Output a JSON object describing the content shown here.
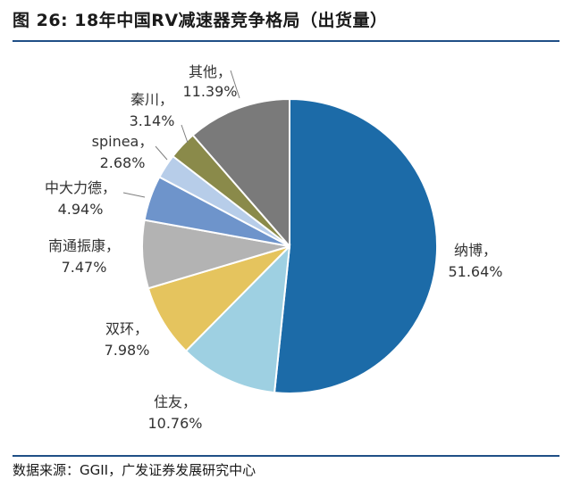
{
  "header": {
    "title": "图 26: 18年中国RV减速器竞争格局（出货量）"
  },
  "footer": {
    "source": "数据来源：GGII，广发证券发展研究中心"
  },
  "chart_data": {
    "type": "pie",
    "title": "图 26: 18年中国RV减速器竞争格局（出货量）",
    "unit": "%",
    "slices": [
      {
        "name": "纳博",
        "value": 51.64,
        "label": "51.64%",
        "color": "#1c6ba8"
      },
      {
        "name": "住友",
        "value": 10.76,
        "label": "10.76%",
        "color": "#9ed0e2"
      },
      {
        "name": "双环",
        "value": 7.98,
        "label": "7.98%",
        "color": "#e5c45e"
      },
      {
        "name": "南通振康",
        "value": 7.47,
        "label": "7.47%",
        "color": "#b3b3b3"
      },
      {
        "name": "中大力德",
        "value": 4.94,
        "label": "4.94%",
        "color": "#6e94cb"
      },
      {
        "name": "spinea",
        "value": 2.68,
        "label": "2.68%",
        "color": "#b7cde9"
      },
      {
        "name": "秦川",
        "value": 3.14,
        "label": "3.14%",
        "color": "#8a8a4a"
      },
      {
        "name": "其他",
        "value": 11.39,
        "label": "11.39%",
        "color": "#7a7a7a"
      }
    ]
  }
}
